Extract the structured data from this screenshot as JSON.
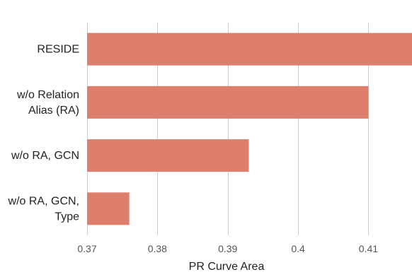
{
  "chart_data": {
    "type": "bar",
    "orientation": "horizontal",
    "categories": [
      [
        "RESIDE"
      ],
      [
        "w/o Relation",
        "Alias (RA)"
      ],
      [
        "w/o RA, GCN"
      ],
      [
        "w/o RA, GCN,",
        "Type"
      ]
    ],
    "values": [
      0.4162,
      0.41,
      0.393,
      0.376
    ],
    "xlabel": "PR Curve Area",
    "xlim": [
      0.37,
      0.4162
    ],
    "xticks": [
      "0.37",
      "0.38",
      "0.39",
      "0.4",
      "0.41"
    ],
    "xtick_values": [
      0.37,
      0.38,
      0.39,
      0.4,
      0.41
    ],
    "grid": "vertical",
    "bar_color": "#de7e6c"
  }
}
